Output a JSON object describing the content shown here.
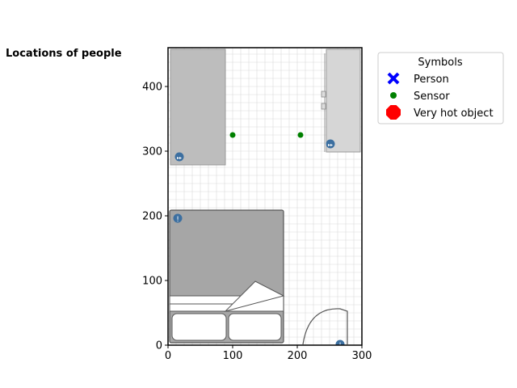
{
  "chart_data": {
    "type": "scatter",
    "title": "Locations of people",
    "xlim": [
      0,
      300
    ],
    "ylim": [
      0,
      460
    ],
    "xticks": [
      0,
      100,
      200,
      300
    ],
    "yticks": [
      0,
      100,
      200,
      300,
      400
    ],
    "background": "floor plan (grid, furniture)",
    "legend": {
      "title": "Symbols",
      "placement": "upper-right outside",
      "entries": [
        {
          "label": "Person",
          "marker": "x-marker",
          "color": "#0000ff"
        },
        {
          "label": "Sensor",
          "marker": "dot-marker",
          "color": "#008000"
        },
        {
          "label": "Very hot object",
          "marker": "octagon-marker",
          "color": "#ff0000"
        }
      ]
    },
    "series": [
      {
        "name": "Person",
        "points": []
      },
      {
        "name": "Sensor",
        "points": [
          [
            100,
            325
          ],
          [
            205,
            325
          ]
        ]
      },
      {
        "name": "Very hot object",
        "points": []
      }
    ]
  }
}
